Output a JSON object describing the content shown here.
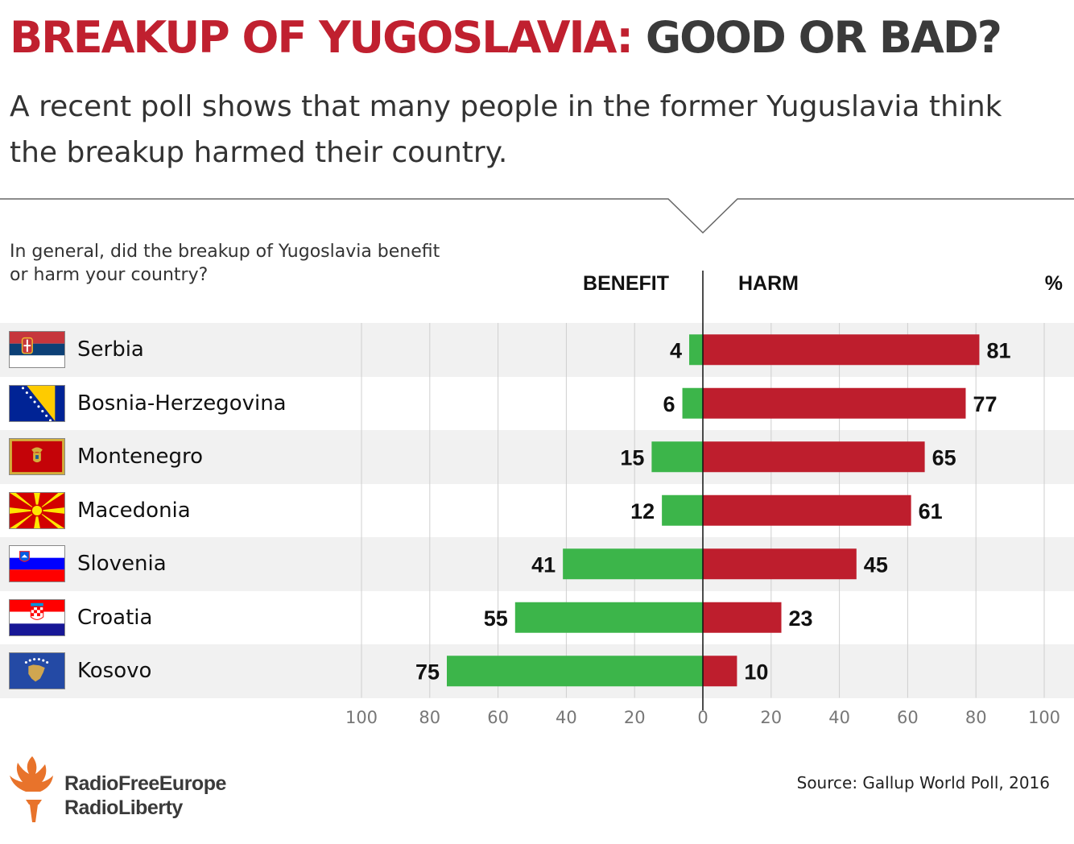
{
  "header": {
    "title_part1": "BREAKUP OF YUGOSLAVIA:",
    "title_part2": "GOOD OR BAD?",
    "subtitle": "A recent poll shows that many people in the former Yuguslavia think the breakup harmed their country."
  },
  "question": "In general, did the breakup of Yugoslavia benefit or harm your country?",
  "column_headers": {
    "benefit": "BENEFIT",
    "harm": "HARM",
    "unit": "%"
  },
  "colors": {
    "benefit": "#3cb54a",
    "harm": "#be1e2d",
    "title_red": "#c0202f",
    "title_gray": "#3a3a3a",
    "row_shade": "#f1f1f1",
    "gridline": "#cfcfcf"
  },
  "chart_data": {
    "type": "bar",
    "orientation": "horizontal-diverging",
    "categories": [
      "Serbia",
      "Bosnia-Herzegovina",
      "Montenegro",
      "Macedonia",
      "Slovenia",
      "Croatia",
      "Kosovo"
    ],
    "series": [
      {
        "name": "BENEFIT",
        "values": [
          4,
          6,
          15,
          12,
          41,
          55,
          75
        ]
      },
      {
        "name": "HARM",
        "values": [
          81,
          77,
          65,
          61,
          45,
          23,
          10
        ]
      }
    ],
    "xlim": [
      -100,
      100
    ],
    "tick_labels": [
      "100",
      "80",
      "60",
      "40",
      "20",
      "0",
      "20",
      "40",
      "60",
      "80",
      "100"
    ],
    "grid": true
  },
  "flags": [
    {
      "icon": "serbia-flag-icon"
    },
    {
      "icon": "bosnia-herzegovina-flag-icon"
    },
    {
      "icon": "montenegro-flag-icon"
    },
    {
      "icon": "macedonia-flag-icon"
    },
    {
      "icon": "slovenia-flag-icon"
    },
    {
      "icon": "croatia-flag-icon"
    },
    {
      "icon": "kosovo-flag-icon"
    }
  ],
  "footer": {
    "source": "Source: Gallup World Poll, 2016",
    "logo_line1": "RadioFreeEurope",
    "logo_line2": "RadioLiberty",
    "logo_icon": "torch-logo-icon"
  }
}
